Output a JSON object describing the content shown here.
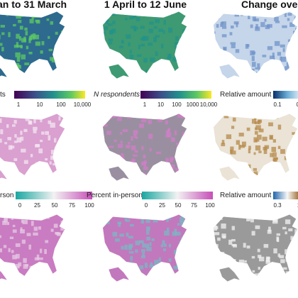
{
  "columns": [
    {
      "title": "an to 31 March",
      "legends": [
        {
          "label": "ts",
          "ticks": [
            "1",
            "10",
            "100",
            "10,000"
          ]
        },
        {
          "label": "rson",
          "ticks": [
            "0",
            "25",
            "50",
            "75",
            "100"
          ]
        }
      ]
    },
    {
      "title": "1 April to 12 June",
      "legends": [
        {
          "label": "N respondents",
          "ticks": [
            "1",
            "10",
            "100",
            "1000",
            "10,000"
          ]
        },
        {
          "label": "Percent in-person",
          "ticks": [
            "0",
            "25",
            "50",
            "75",
            "100"
          ]
        }
      ]
    },
    {
      "title": "Change ove",
      "legends": [
        {
          "label": "Relative amount",
          "ticks": [
            "0.1",
            "0."
          ]
        },
        {
          "label": "Relative amount",
          "ticks": [
            "0.3",
            "1"
          ]
        }
      ]
    }
  ]
}
